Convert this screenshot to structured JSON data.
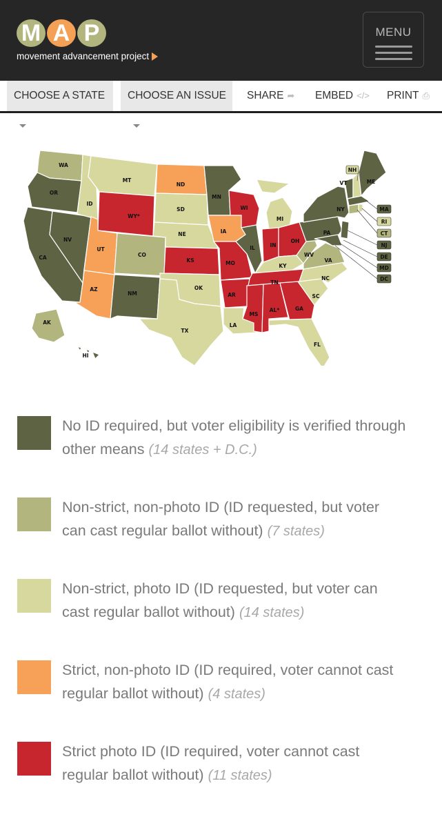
{
  "header": {
    "logo_letters": [
      "M",
      "A",
      "P"
    ],
    "logo_tagline": "movement advancement project",
    "menu_label": "MENU"
  },
  "toolbar": {
    "choose_state": "CHOOSE A STATE",
    "choose_issue": "CHOOSE AN ISSUE",
    "share": "SHARE",
    "embed": "EMBED",
    "print": "PRINT"
  },
  "colors": {
    "no_id": "#5e6443",
    "nonstrict_nonphoto": "#b3b57e",
    "nonstrict_photo": "#d6d89e",
    "strict_nonphoto": "#f7a158",
    "strict_photo": "#c8262f"
  },
  "map": {
    "labels": [
      "WA",
      "OR",
      "CA",
      "NV",
      "ID",
      "MT",
      "WY*",
      "UT",
      "AZ",
      "CO",
      "NM",
      "ND",
      "SD",
      "NE",
      "KS",
      "OK",
      "TX",
      "MN",
      "IA",
      "MO",
      "AR",
      "LA",
      "WI",
      "IL",
      "MI",
      "IN",
      "OH",
      "KY",
      "TN",
      "MS",
      "AL*",
      "GA",
      "FL",
      "SC",
      "NC",
      "VA",
      "WV",
      "PA",
      "NY",
      "VT",
      "NH",
      "ME",
      "MA",
      "RI",
      "CT",
      "NJ",
      "DE",
      "MD",
      "DC",
      "AK",
      "HI"
    ]
  },
  "legend": [
    {
      "text": "No ID required, but voter eligibility is verified through other means",
      "count": "(14 states + D.C.)",
      "color_key": "no_id"
    },
    {
      "text": "Non-strict, non-photo ID (ID requested, but voter can cast regular ballot without)",
      "count": "(7 states)",
      "color_key": "nonstrict_nonphoto"
    },
    {
      "text": "Non-strict, photo ID (ID requested, but voter can cast regular ballot without)",
      "count": "(14 states)",
      "color_key": "nonstrict_photo"
    },
    {
      "text": "Strict, non-photo ID (ID required, voter cannot cast regular ballot without)",
      "count": "(4 states)",
      "color_key": "strict_nonphoto"
    },
    {
      "text": "Strict photo ID (ID required, voter cannot cast regular ballot without)",
      "count": "(11 states)",
      "color_key": "strict_photo"
    }
  ]
}
